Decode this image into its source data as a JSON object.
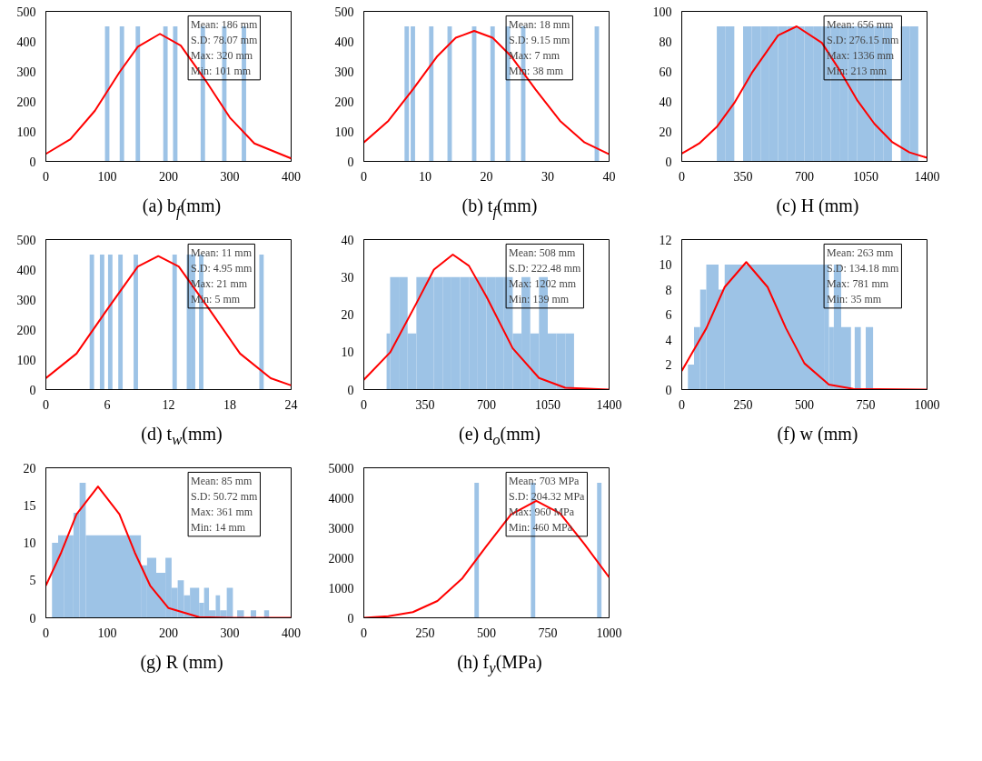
{
  "chart_data": [
    {
      "type": "bar",
      "xlabel": "(a) b$_{f}$(mm)",
      "xlim": [
        0,
        400
      ],
      "xticks": [
        0,
        100,
        200,
        300,
        400
      ],
      "ylim": [
        0,
        500
      ],
      "yticks": [
        0,
        100,
        200,
        300,
        400,
        500
      ],
      "annotations": [
        "Mean: 186 mm",
        "S.D: 78.07 mm",
        "Max: 320 mm",
        "Min: 101 mm"
      ],
      "series": [
        {
          "color": "#9dc3e6",
          "x": [
            100,
            124,
            150,
            195,
            211,
            256,
            291,
            323
          ],
          "values": [
            450,
            450,
            450,
            450,
            450,
            450,
            450,
            450
          ]
        },
        {
          "type": "line",
          "color": "#ff0000",
          "x": [
            0,
            40,
            80,
            120,
            150,
            186,
            220,
            260,
            300,
            340,
            400
          ],
          "values": [
            25,
            74,
            169,
            297,
            382,
            425,
            386,
            271,
            146,
            60,
            10
          ]
        }
      ]
    },
    {
      "type": "bar",
      "xlabel": "(b) t$_{f}$(mm)",
      "xlim": [
        0,
        40
      ],
      "xticks": [
        0,
        10,
        20,
        30,
        40
      ],
      "ylim": [
        0,
        500
      ],
      "yticks": [
        0,
        100,
        200,
        300,
        400,
        500
      ],
      "annotations": [
        "Mean: 18 mm",
        "S.D: 9.15 mm",
        "Max: 7 mm",
        "Min: 38 mm"
      ],
      "series": [
        {
          "color": "#9dc3e6",
          "x": [
            7,
            8,
            11,
            14,
            18,
            21,
            23.5,
            26,
            38
          ],
          "values": [
            450,
            450,
            450,
            450,
            450,
            450,
            450,
            450,
            450
          ]
        },
        {
          "type": "line",
          "color": "#ff0000",
          "x": [
            0,
            4,
            8,
            12,
            15,
            18,
            21,
            24,
            28,
            32,
            36,
            40
          ],
          "values": [
            63,
            135,
            240,
            351,
            412,
            435,
            412,
            351,
            240,
            135,
            63,
            24
          ]
        }
      ]
    },
    {
      "type": "histogram",
      "xlabel": "(c) H (mm)",
      "xlim": [
        0,
        1400
      ],
      "xticks": [
        0,
        350,
        700,
        1050,
        1400
      ],
      "ylim": [
        0,
        100
      ],
      "yticks": [
        0,
        20,
        40,
        60,
        80,
        100
      ],
      "annotations": [
        "Mean: 656 mm",
        "S.D: 276.15 mm",
        "Max: 1336 mm",
        "Min: 213 mm"
      ],
      "series": [
        {
          "color": "#9dc3e6",
          "bins": [
            200,
            250,
            300,
            350,
            400,
            450,
            500,
            550,
            600,
            650,
            700,
            750,
            800,
            850,
            900,
            950,
            1000,
            1050,
            1100,
            1150,
            1200,
            1250,
            1300,
            1350
          ],
          "values": [
            90,
            90,
            0,
            90,
            90,
            90,
            90,
            90,
            90,
            90,
            90,
            90,
            90,
            90,
            90,
            90,
            90,
            90,
            90,
            90,
            0,
            90,
            90
          ]
        },
        {
          "type": "line",
          "color": "#ff0000",
          "x": [
            0,
            100,
            200,
            300,
            400,
            550,
            656,
            800,
            900,
            1000,
            1100,
            1200,
            1300,
            1400
          ],
          "values": [
            5.2,
            12,
            23,
            39,
            59,
            84,
            90,
            79,
            61,
            41,
            25,
            13,
            6,
            2.4
          ]
        }
      ]
    },
    {
      "type": "bar",
      "xlabel": "(d) t$_{w}$(mm)",
      "xlim": [
        0,
        24
      ],
      "xticks": [
        0,
        6,
        12,
        18,
        24
      ],
      "ylim": [
        0,
        500
      ],
      "yticks": [
        0,
        100,
        200,
        300,
        400,
        500
      ],
      "annotations": [
        "Mean: 11 mm",
        "S.D: 4.95 mm",
        "Max: 21 mm",
        "Min: 5 mm"
      ],
      "series": [
        {
          "color": "#9dc3e6",
          "x": [
            4.5,
            5.5,
            6.3,
            7.3,
            8.8,
            12.6,
            14,
            14.4,
            15.2,
            21.1
          ],
          "values": [
            450,
            450,
            450,
            450,
            450,
            450,
            450,
            450,
            450,
            450
          ]
        },
        {
          "type": "line",
          "color": "#ff0000",
          "x": [
            0,
            3,
            6,
            9,
            11,
            13,
            16,
            19,
            22,
            24
          ],
          "values": [
            38,
            120,
            267,
            410,
            445,
            410,
            267,
            120,
            38,
            14
          ]
        }
      ]
    },
    {
      "type": "histogram",
      "xlabel": "(e) d$_{o}$(mm)",
      "xlim": [
        0,
        1400
      ],
      "xticks": [
        0,
        350,
        700,
        1050,
        1400
      ],
      "ylim": [
        0,
        40
      ],
      "yticks": [
        0,
        10,
        20,
        30,
        40
      ],
      "annotations": [
        "Mean: 508 mm",
        "S.D: 222.48 mm",
        "Max: 1202 mm",
        "Min: 139 mm"
      ],
      "series": [
        {
          "color": "#9dc3e6",
          "bins": [
            130,
            150,
            200,
            250,
            300,
            350,
            400,
            450,
            500,
            550,
            600,
            650,
            700,
            750,
            800,
            850,
            900,
            950,
            1000,
            1050,
            1100,
            1150,
            1200
          ],
          "values": [
            15,
            30,
            30,
            15,
            30,
            30,
            30,
            30,
            30,
            30,
            30,
            30,
            30,
            30,
            30,
            15,
            30,
            15,
            30,
            15,
            15,
            15
          ]
        },
        {
          "type": "line",
          "color": "#ff0000",
          "x": [
            0,
            150,
            300,
            400,
            508,
            600,
            700,
            850,
            1000,
            1150,
            1400
          ],
          "values": [
            2.6,
            9.9,
            23,
            32,
            36,
            33,
            24.8,
            11,
            3.1,
            0.5,
            0
          ]
        }
      ]
    },
    {
      "type": "histogram",
      "xlabel": "(f) w (mm)",
      "xlim": [
        0,
        1000
      ],
      "xticks": [
        0,
        250,
        500,
        750,
        1000
      ],
      "ylim": [
        0,
        12
      ],
      "yticks": [
        0,
        2,
        4,
        6,
        8,
        10,
        12
      ],
      "annotations": [
        "Mean: 263 mm",
        "S.D: 134.18 mm",
        "Max: 781 mm",
        "Min: 35 mm"
      ],
      "series": [
        {
          "color": "#9dc3e6",
          "bins": [
            25,
            50,
            75,
            100,
            150,
            175,
            580,
            600,
            620,
            650,
            690,
            705,
            730,
            750,
            780
          ],
          "values": [
            2,
            5,
            8,
            10,
            8,
            10,
            10,
            5,
            10,
            5,
            0,
            5,
            0,
            5
          ]
        },
        {
          "type": "line",
          "color": "#ff0000",
          "x": [
            0,
            100,
            175,
            263,
            350,
            425,
            500,
            600,
            700,
            1000
          ],
          "values": [
            1.5,
            4.9,
            8.2,
            10.2,
            8.2,
            4.9,
            2.1,
            0.4,
            0.05,
            0
          ]
        }
      ]
    },
    {
      "type": "histogram",
      "xlabel": "(g) R (mm)",
      "xlim": [
        0,
        400
      ],
      "xticks": [
        0,
        100,
        200,
        300,
        400
      ],
      "ylim": [
        0,
        20
      ],
      "yticks": [
        0,
        5,
        10,
        15,
        20
      ],
      "annotations": [
        "Mean: 85 mm",
        "S.D: 50.72 mm",
        "Max: 361 mm",
        "Min: 14 mm"
      ],
      "series": [
        {
          "color": "#9dc3e6",
          "bins": [
            10,
            20,
            30,
            45,
            55,
            65,
            155,
            165,
            180,
            195,
            205,
            215,
            225,
            235,
            250,
            258,
            266,
            277,
            284,
            295,
            305,
            312,
            323,
            334,
            343,
            356,
            364
          ],
          "values": [
            10,
            11,
            11,
            14,
            18,
            11,
            7,
            8,
            6,
            8,
            4,
            5,
            3,
            4,
            2,
            4,
            1,
            3,
            1,
            4,
            0,
            1,
            0,
            1,
            0,
            1
          ]
        },
        {
          "type": "line",
          "color": "#ff0000",
          "x": [
            0,
            25,
            50,
            85,
            120,
            145,
            170,
            200,
            250,
            300,
            400
          ],
          "values": [
            4.3,
            8.7,
            13.8,
            17.5,
            13.8,
            8.7,
            4.3,
            1.3,
            0.1,
            0,
            0
          ]
        }
      ]
    },
    {
      "type": "bar",
      "xlabel": "(h) f$_{y}$(MPa)",
      "xlim": [
        0,
        1000
      ],
      "xticks": [
        0,
        250,
        500,
        750,
        1000
      ],
      "ylim": [
        0,
        5000
      ],
      "yticks": [
        0,
        1000,
        2000,
        3000,
        4000,
        5000
      ],
      "annotations": [
        "Mean: 703 MPa",
        "S.D: 204.32 MPa",
        "Max: 960 MPa",
        "Min: 460 MPa"
      ],
      "series": [
        {
          "color": "#9dc3e6",
          "x": [
            460,
            690,
            960
          ],
          "values": [
            4500,
            4500,
            4500
          ]
        },
        {
          "type": "line",
          "color": "#ff0000",
          "x": [
            0,
            100,
            200,
            300,
            400,
            500,
            600,
            703,
            800,
            900,
            1000
          ],
          "values": [
            0,
            50,
            190,
            560,
            1300,
            2390,
            3440,
            3900,
            3480,
            2450,
            1350
          ]
        }
      ]
    }
  ]
}
